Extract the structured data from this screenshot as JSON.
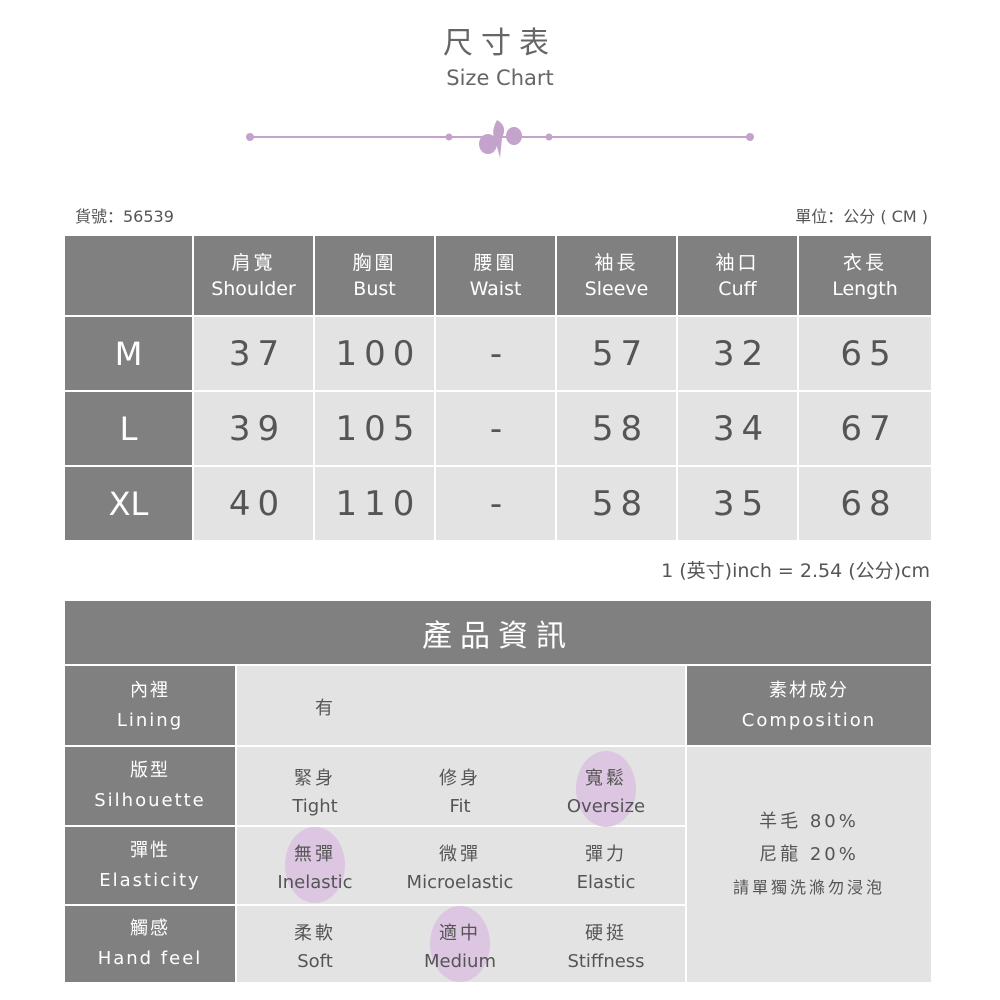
{
  "header": {
    "title_cn": "尺寸表",
    "title_en": "Size Chart",
    "ornament": "iris-flower-divider",
    "accent": "#c3a3cc"
  },
  "meta": {
    "item_no": "貨號：56539",
    "unit": "單位：公分 ( CM )"
  },
  "size_table": {
    "columns": [
      {
        "cn": "肩寬",
        "en": "Shoulder"
      },
      {
        "cn": "胸圍",
        "en": "Bust"
      },
      {
        "cn": "腰圍",
        "en": "Waist"
      },
      {
        "cn": "袖長",
        "en": "Sleeve"
      },
      {
        "cn": "袖口",
        "en": "Cuff"
      },
      {
        "cn": "衣長",
        "en": "Length"
      }
    ],
    "rows": [
      {
        "size": "M",
        "values": [
          "37",
          "100",
          "-",
          "57",
          "32",
          "65"
        ]
      },
      {
        "size": "L",
        "values": [
          "39",
          "105",
          "-",
          "58",
          "34",
          "67"
        ]
      },
      {
        "size": "XL",
        "values": [
          "40",
          "110",
          "-",
          "58",
          "35",
          "68"
        ]
      }
    ],
    "note": "1 (英寸)inch = 2.54 (公分)cm"
  },
  "product_info": {
    "title": "產品資訊",
    "lining": {
      "cn": "內裡",
      "en": "Lining",
      "value": "有"
    },
    "composition": {
      "cn": "素材成分",
      "en": "Composition",
      "lines": [
        "羊毛 80%",
        "尼龍 20%",
        "請單獨洗滌勿浸泡"
      ]
    },
    "attributes": [
      {
        "cn": "版型",
        "en": "Silhouette",
        "options": [
          {
            "cn": "緊身",
            "en": "Tight",
            "selected": false
          },
          {
            "cn": "修身",
            "en": "Fit",
            "selected": false
          },
          {
            "cn": "寬鬆",
            "en": "Oversize",
            "selected": true
          }
        ]
      },
      {
        "cn": "彈性",
        "en": "Elasticity",
        "options": [
          {
            "cn": "無彈",
            "en": "Inelastic",
            "selected": true
          },
          {
            "cn": "微彈",
            "en": "Microelastic",
            "selected": false
          },
          {
            "cn": "彈力",
            "en": "Elastic",
            "selected": false
          }
        ]
      },
      {
        "cn": "觸感",
        "en": "Hand feel",
        "options": [
          {
            "cn": "柔軟",
            "en": "Soft",
            "selected": false
          },
          {
            "cn": "適中",
            "en": "Medium",
            "selected": true
          },
          {
            "cn": "硬挺",
            "en": "Stiffness",
            "selected": false
          }
        ]
      }
    ]
  }
}
